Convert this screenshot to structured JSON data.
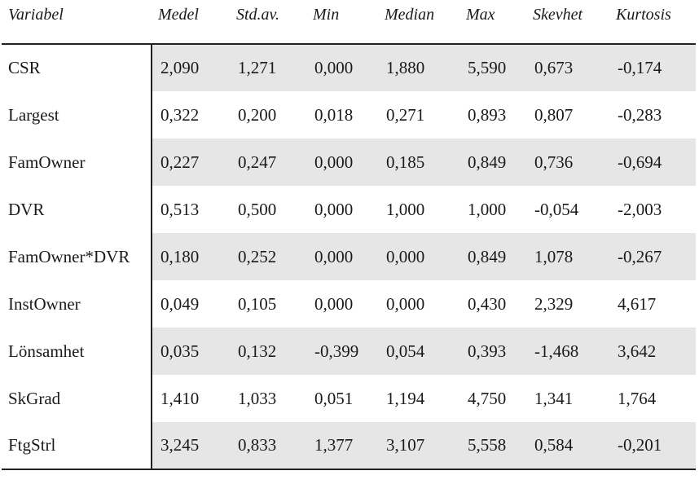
{
  "table": {
    "headers": [
      "Variabel",
      "Medel",
      "Std.av.",
      "Min",
      "Median",
      "Max",
      "Skevhet",
      "Kurtosis"
    ],
    "rows": [
      {
        "label": "CSR",
        "values": [
          "2,090",
          "1,271",
          "0,000",
          "1,880",
          "5,590",
          "0,673",
          "-0,174"
        ],
        "shaded": true
      },
      {
        "label": "Largest",
        "values": [
          "0,322",
          "0,200",
          "0,018",
          "0,271",
          "0,893",
          "0,807",
          "-0,283"
        ],
        "shaded": false
      },
      {
        "label": "FamOwner",
        "values": [
          "0,227",
          "0,247",
          "0,000",
          "0,185",
          "0,849",
          "0,736",
          "-0,694"
        ],
        "shaded": true
      },
      {
        "label": "DVR",
        "values": [
          "0,513",
          "0,500",
          "0,000",
          "1,000",
          "1,000",
          "-0,054",
          "-2,003"
        ],
        "shaded": false
      },
      {
        "label": "FamOwner*DVR",
        "values": [
          "0,180",
          "0,252",
          "0,000",
          "0,000",
          "0,849",
          "1,078",
          "-0,267"
        ],
        "shaded": true
      },
      {
        "label": "InstOwner",
        "values": [
          "0,049",
          "0,105",
          "0,000",
          "0,000",
          "0,430",
          "2,329",
          "4,617"
        ],
        "shaded": false
      },
      {
        "label": "Lönsamhet",
        "values": [
          "0,035",
          "0,132",
          "-0,399",
          "0,054",
          "0,393",
          "-1,468",
          "3,642"
        ],
        "shaded": true
      },
      {
        "label": "SkGrad",
        "values": [
          "1,410",
          "1,033",
          "0,051",
          "1,194",
          "4,750",
          "1,341",
          "1,764"
        ],
        "shaded": false
      },
      {
        "label": "FtgStrl",
        "values": [
          "3,245",
          "0,833",
          "1,377",
          "3,107",
          "5,558",
          "0,584",
          "-0,201"
        ],
        "shaded": true
      }
    ]
  }
}
